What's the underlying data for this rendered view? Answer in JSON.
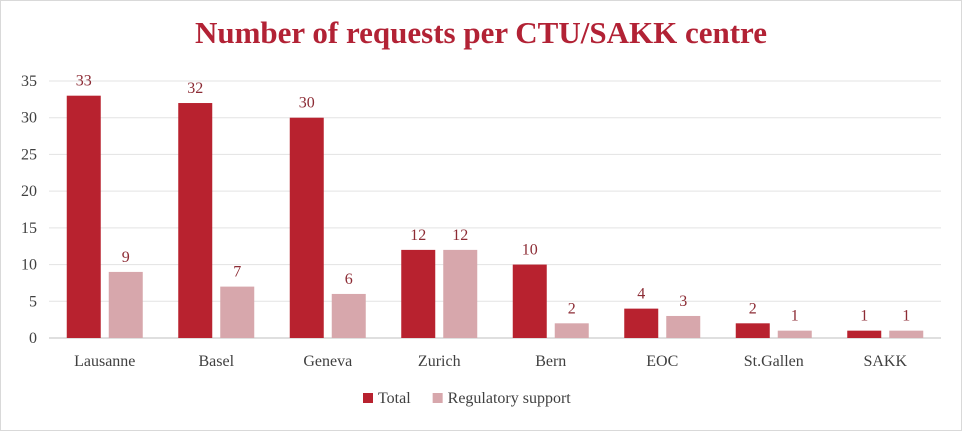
{
  "chart_data": {
    "type": "bar",
    "title": "Number of requests per CTU/SAKK centre",
    "categories": [
      "Lausanne",
      "Basel",
      "Geneva",
      "Zurich",
      "Bern",
      "EOC",
      "St.Gallen",
      "SAKK"
    ],
    "series": [
      {
        "name": "Total",
        "values": [
          33,
          32,
          30,
          12,
          10,
          4,
          2,
          1
        ],
        "color": "#b8222f"
      },
      {
        "name": "Regulatory support",
        "values": [
          9,
          7,
          6,
          12,
          2,
          3,
          1,
          1
        ],
        "color": "#d7a7ac"
      }
    ],
    "ylim": [
      0,
      35
    ],
    "yticks": [
      0,
      5,
      10,
      15,
      20,
      25,
      30,
      35
    ],
    "grid": true,
    "legend": "bottom-center",
    "xlabel": "",
    "ylabel": ""
  }
}
